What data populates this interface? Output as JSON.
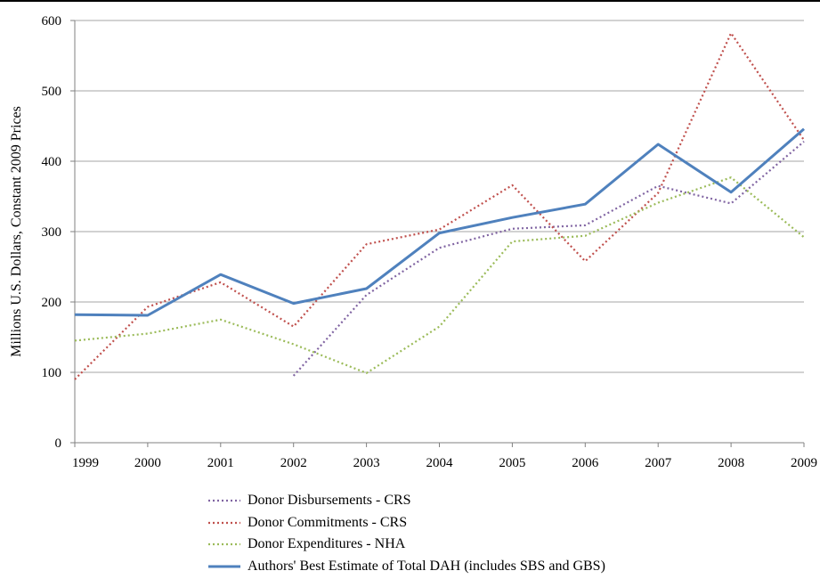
{
  "chart_data": {
    "type": "line",
    "ylabel": "Millions U.S. Dollars, Constant 2009 Prices",
    "xlabel": "",
    "x": [
      "1999",
      "2000",
      "2001",
      "2002",
      "2003",
      "2004",
      "2005",
      "2006",
      "2007",
      "2008",
      "2009"
    ],
    "y_ticks": [
      "0",
      "100",
      "200",
      "300",
      "400",
      "500",
      "600"
    ],
    "ylim": [
      0,
      600
    ],
    "grid": "horizontal",
    "legend_position": "bottom",
    "series": [
      {
        "name": "Donor Disbursements - CRS",
        "color": "#8064A2",
        "style": "dotted",
        "values": [
          null,
          null,
          null,
          95,
          210,
          277,
          304,
          309,
          365,
          340,
          428
        ]
      },
      {
        "name": "Donor Commitments - CRS",
        "color": "#C0504D",
        "style": "dotted",
        "values": [
          90,
          193,
          228,
          165,
          282,
          303,
          366,
          258,
          355,
          582,
          430
        ]
      },
      {
        "name": "Donor Expenditures - NHA",
        "color": "#9BBB59",
        "style": "dotted",
        "values": [
          145,
          155,
          175,
          140,
          99,
          165,
          286,
          294,
          341,
          377,
          292
        ]
      },
      {
        "name": "Authors' Best Estimate of Total DAH (includes SBS and GBS)",
        "color": "#4F81BD",
        "style": "solid",
        "values": [
          182,
          181,
          239,
          198,
          219,
          298,
          320,
          339,
          424,
          356,
          446
        ]
      }
    ]
  }
}
